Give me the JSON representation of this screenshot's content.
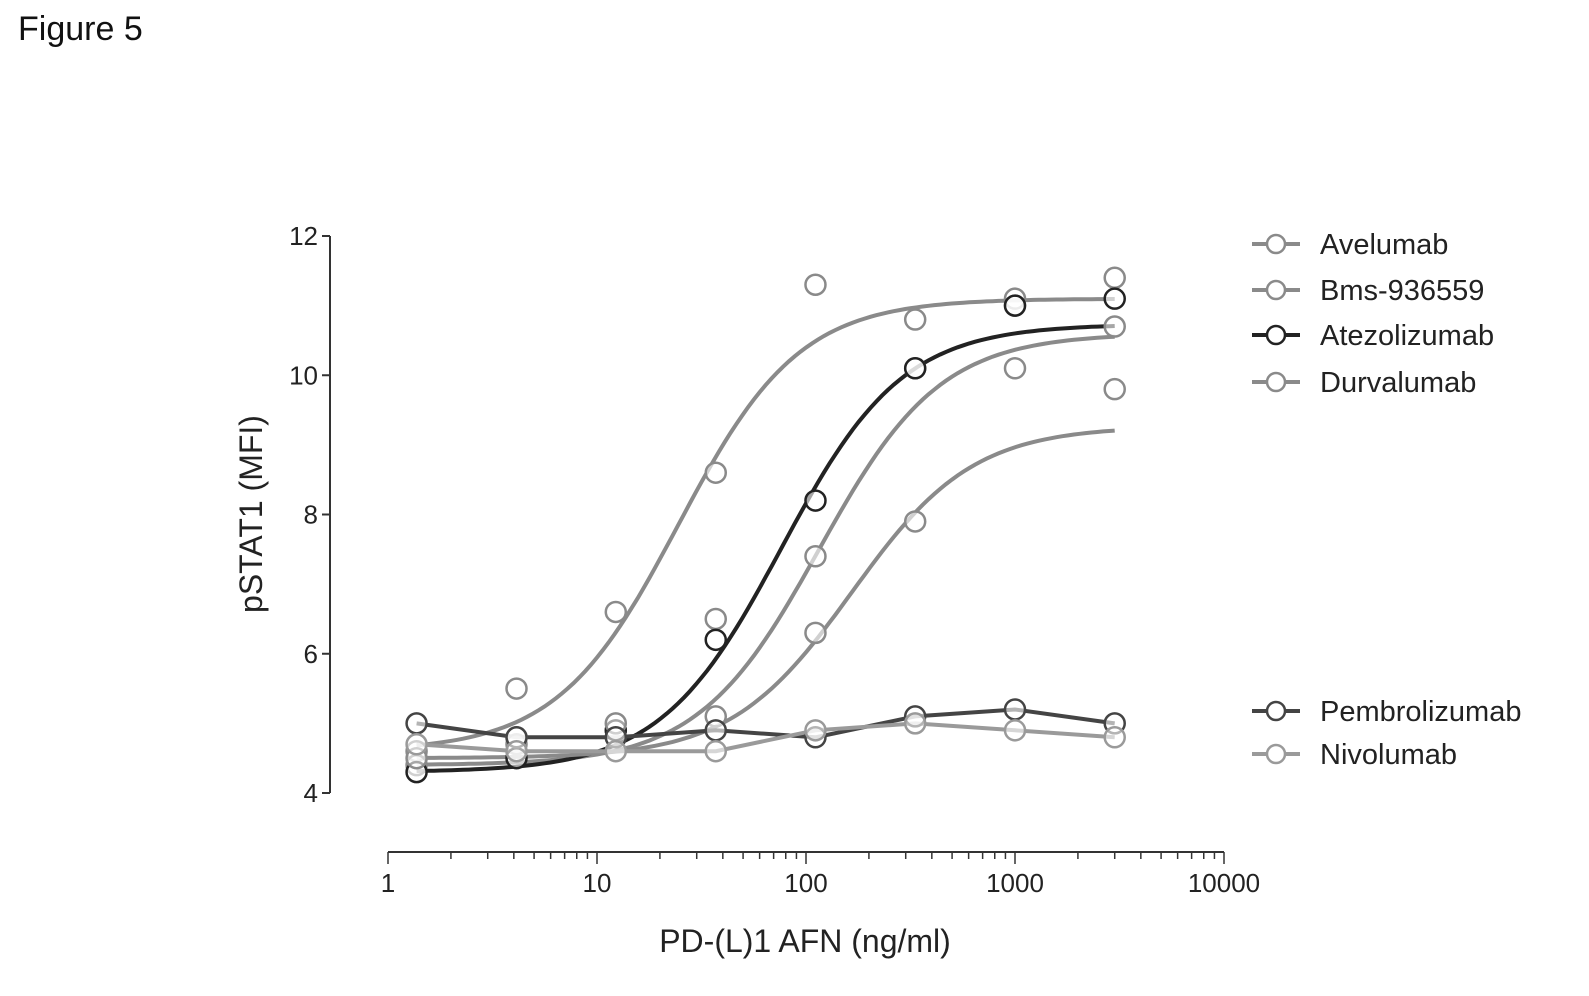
{
  "figure_label": "Figure 5",
  "chart_data": {
    "type": "line",
    "title": "",
    "xlabel": "PD-(L)1 AFN (ng/ml)",
    "ylabel": "pSTAT1 (MFI)",
    "x_scale": "log",
    "xlim": [
      1,
      10000
    ],
    "ylim": [
      4,
      12
    ],
    "x_ticks": [
      1,
      10,
      100,
      1000,
      10000
    ],
    "x_tick_labels": [
      "1",
      "10",
      "100",
      "1000",
      "10000"
    ],
    "y_ticks": [
      4,
      6,
      8,
      10,
      12
    ],
    "y_tick_labels": [
      "4",
      "6",
      "8",
      "10",
      "12"
    ],
    "grid": false,
    "legend_position": "right",
    "x": [
      1.37,
      4.12,
      12.3,
      37.0,
      111,
      333,
      1000,
      3000
    ],
    "series": [
      {
        "name": "Avelumab",
        "color": "#8a8a8a",
        "values": [
          4.6,
          5.5,
          6.6,
          8.6,
          11.3,
          10.8,
          11.1,
          11.4
        ]
      },
      {
        "name": "Bms-936559",
        "color": "#8a8a8a",
        "values": [
          4.4,
          4.7,
          4.9,
          6.5,
          7.4,
          10.1,
          11.0,
          10.7
        ]
      },
      {
        "name": "Atezolizumab",
        "color": "#222222",
        "values": [
          4.3,
          4.5,
          4.9,
          6.2,
          8.2,
          10.1,
          11.0,
          11.1
        ]
      },
      {
        "name": "Durvalumab",
        "color": "#8a8a8a",
        "values": [
          4.5,
          4.8,
          5.0,
          5.1,
          6.3,
          7.9,
          10.1,
          9.8
        ]
      },
      {
        "name": "Pembrolizumab",
        "color": "#444444",
        "values": [
          5.0,
          4.8,
          4.8,
          4.9,
          4.8,
          5.1,
          5.2,
          5.0
        ]
      },
      {
        "name": "Nivolumab",
        "color": "#9a9a9a",
        "values": [
          4.7,
          4.6,
          4.6,
          4.6,
          4.9,
          5.0,
          4.9,
          4.8
        ]
      }
    ]
  }
}
